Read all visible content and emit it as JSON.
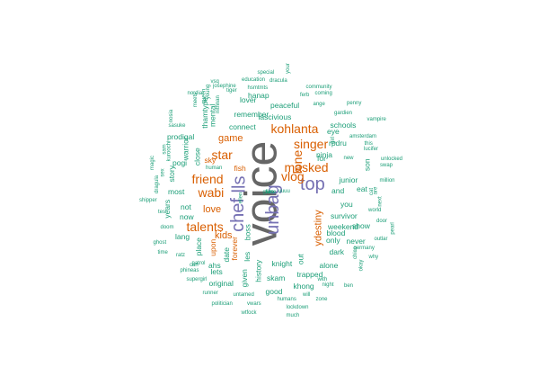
{
  "colors": {
    "gray": "#666666",
    "purple": "#7570b3",
    "orange": "#d95f02",
    "teal": "#1b9e77",
    "background": "#ffffff"
  },
  "words": [
    {
      "text": "voice",
      "color": "gray",
      "tier": 1
    },
    {
      "text": "lls",
      "color": "purple",
      "tier": 2
    },
    {
      "text": "unbag",
      "color": "purple",
      "tier": 2
    },
    {
      "text": "top",
      "color": "purple",
      "tier": 2
    },
    {
      "text": "chef",
      "color": "purple",
      "tier": 2
    },
    {
      "text": "kohlanta",
      "color": "orange",
      "tier": 3
    },
    {
      "text": "singer",
      "color": "orange",
      "tier": 3
    },
    {
      "text": "masked",
      "color": "orange",
      "tier": 3
    },
    {
      "text": "friend",
      "color": "orange",
      "tier": 3
    },
    {
      "text": "star",
      "color": "orange",
      "tier": 3
    },
    {
      "text": "wabi",
      "color": "orange",
      "tier": 3
    },
    {
      "text": "lone",
      "color": "orange",
      "tier": 3
    },
    {
      "text": "vlog",
      "color": "orange",
      "tier": 3
    },
    {
      "text": "talents",
      "color": "orange",
      "tier": 3
    },
    {
      "text": "game",
      "color": "orange",
      "tier": 4
    },
    {
      "text": "love",
      "color": "orange",
      "tier": 4
    },
    {
      "text": "kids",
      "color": "orange",
      "tier": 4
    },
    {
      "text": "ydestiny",
      "color": "orange",
      "tier": 4
    },
    {
      "text": "fish",
      "color": "orange",
      "tier": 5
    },
    {
      "text": "sky",
      "color": "orange",
      "tier": 5
    },
    {
      "text": "upon",
      "color": "orange",
      "tier": 5
    },
    {
      "text": "forever",
      "color": "orange",
      "tier": 5
    },
    {
      "text": "connect",
      "color": "teal",
      "tier": 5
    },
    {
      "text": "remember",
      "color": "teal",
      "tier": 5
    },
    {
      "text": "lascivious",
      "color": "teal",
      "tier": 5
    },
    {
      "text": "peaceful",
      "color": "teal",
      "tier": 5
    },
    {
      "text": "eye",
      "color": "teal",
      "tier": 5
    },
    {
      "text": "schools",
      "color": "teal",
      "tier": 5
    },
    {
      "text": "ninja",
      "color": "teal",
      "tier": 5
    },
    {
      "text": "junior",
      "color": "teal",
      "tier": 5
    },
    {
      "text": "and",
      "color": "teal",
      "tier": 5
    },
    {
      "text": "you",
      "color": "teal",
      "tier": 5
    },
    {
      "text": "survivor",
      "color": "teal",
      "tier": 5
    },
    {
      "text": "weekend",
      "color": "teal",
      "tier": 5
    },
    {
      "text": "only",
      "color": "teal",
      "tier": 5
    },
    {
      "text": "never",
      "color": "teal",
      "tier": 5
    },
    {
      "text": "dark",
      "color": "teal",
      "tier": 5
    },
    {
      "text": "alone",
      "color": "teal",
      "tier": 5
    },
    {
      "text": "trapped",
      "color": "teal",
      "tier": 5
    },
    {
      "text": "knight",
      "color": "teal",
      "tier": 5
    },
    {
      "text": "skam",
      "color": "teal",
      "tier": 5
    },
    {
      "text": "khong",
      "color": "teal",
      "tier": 5
    },
    {
      "text": "good",
      "color": "teal",
      "tier": 5
    },
    {
      "text": "history",
      "color": "teal",
      "tier": 5
    },
    {
      "text": "original",
      "color": "teal",
      "tier": 5
    },
    {
      "text": "lets",
      "color": "teal",
      "tier": 5
    },
    {
      "text": "ahs",
      "color": "teal",
      "tier": 5
    },
    {
      "text": "date",
      "color": "teal",
      "tier": 5
    },
    {
      "text": "given",
      "color": "teal",
      "tier": 5
    },
    {
      "text": "les",
      "color": "teal",
      "tier": 5
    },
    {
      "text": "boss",
      "color": "teal",
      "tier": 5
    },
    {
      "text": "place",
      "color": "teal",
      "tier": 5
    },
    {
      "text": "lang",
      "color": "teal",
      "tier": 5
    },
    {
      "text": "now",
      "color": "teal",
      "tier": 5
    },
    {
      "text": "not",
      "color": "teal",
      "tier": 5
    },
    {
      "text": "most",
      "color": "teal",
      "tier": 5
    },
    {
      "text": "story",
      "color": "teal",
      "tier": 5
    },
    {
      "text": "pogi",
      "color": "teal",
      "tier": 5
    },
    {
      "text": "prodigal",
      "color": "teal",
      "tier": 5
    },
    {
      "text": "warrior",
      "color": "teal",
      "tier": 5
    },
    {
      "text": "close",
      "color": "teal",
      "tier": 5
    },
    {
      "text": "mental",
      "color": "teal",
      "tier": 5
    },
    {
      "text": "hanap",
      "color": "teal",
      "tier": 5
    },
    {
      "text": "lover",
      "color": "teal",
      "tier": 5
    },
    {
      "text": "rpdru",
      "color": "teal",
      "tier": 5
    },
    {
      "text": "son",
      "color": "teal",
      "tier": 5
    },
    {
      "text": "eat",
      "color": "teal",
      "tier": 5
    },
    {
      "text": "for",
      "color": "teal",
      "tier": 5
    },
    {
      "text": "years",
      "color": "teal",
      "tier": 5
    },
    {
      "text": "show",
      "color": "teal",
      "tier": 5
    },
    {
      "text": "out",
      "color": "teal",
      "tier": 5
    },
    {
      "text": "blood",
      "color": "teal",
      "tier": 5
    },
    {
      "text": "thamtype",
      "color": "teal",
      "tier": 5
    },
    {
      "text": "human",
      "color": "teal",
      "tier": 6
    },
    {
      "text": "amsterdam",
      "color": "teal",
      "tier": 6
    },
    {
      "text": "girl",
      "color": "teal",
      "tier": 6
    },
    {
      "text": "nithnan",
      "color": "teal",
      "tier": 6
    },
    {
      "text": "hsmtmts",
      "color": "teal",
      "tier": 6
    },
    {
      "text": "josephine",
      "color": "teal",
      "tier": 6
    },
    {
      "text": "vsq",
      "color": "teal",
      "tier": 6
    },
    {
      "text": "education",
      "color": "teal",
      "tier": 6
    },
    {
      "text": "dracula",
      "color": "teal",
      "tier": 6
    },
    {
      "text": "special",
      "color": "teal",
      "tier": 6
    },
    {
      "text": "your",
      "color": "teal",
      "tier": 6
    },
    {
      "text": "community",
      "color": "teal",
      "tier": 6
    },
    {
      "text": "coming",
      "color": "teal",
      "tier": 6
    },
    {
      "text": "ferb",
      "color": "teal",
      "tier": 6
    },
    {
      "text": "ange",
      "color": "teal",
      "tier": 6
    },
    {
      "text": "penny",
      "color": "teal",
      "tier": 6
    },
    {
      "text": "gardien",
      "color": "teal",
      "tier": 6
    },
    {
      "text": "vampire",
      "color": "teal",
      "tier": 6
    },
    {
      "text": "this",
      "color": "teal",
      "tier": 6
    },
    {
      "text": "lucifer",
      "color": "teal",
      "tier": 6
    },
    {
      "text": "unlocked",
      "color": "teal",
      "tier": 6
    },
    {
      "text": "swap",
      "color": "teal",
      "tier": 6
    },
    {
      "text": "million",
      "color": "teal",
      "tier": 6
    },
    {
      "text": "world",
      "color": "teal",
      "tier": 6
    },
    {
      "text": "door",
      "color": "teal",
      "tier": 6
    },
    {
      "text": "pearl",
      "color": "teal",
      "tier": 6
    },
    {
      "text": "outlar",
      "color": "teal",
      "tier": 6
    },
    {
      "text": "why",
      "color": "teal",
      "tier": 6
    },
    {
      "text": "okay",
      "color": "teal",
      "tier": 6
    },
    {
      "text": "chico",
      "color": "teal",
      "tier": 6
    },
    {
      "text": "germany",
      "color": "teal",
      "tier": 6
    },
    {
      "text": "ben",
      "color": "teal",
      "tier": 6
    },
    {
      "text": "night",
      "color": "teal",
      "tier": 6
    },
    {
      "text": "with",
      "color": "teal",
      "tier": 6
    },
    {
      "text": "will",
      "color": "teal",
      "tier": 6
    },
    {
      "text": "zone",
      "color": "teal",
      "tier": 6
    },
    {
      "text": "much",
      "color": "teal",
      "tier": 6
    },
    {
      "text": "lockdown",
      "color": "teal",
      "tier": 6
    },
    {
      "text": "humans",
      "color": "teal",
      "tier": 6
    },
    {
      "text": "wtfock",
      "color": "teal",
      "tier": 6
    },
    {
      "text": "vwars",
      "color": "teal",
      "tier": 6
    },
    {
      "text": "untamed",
      "color": "teal",
      "tier": 6
    },
    {
      "text": "politician",
      "color": "teal",
      "tier": 6
    },
    {
      "text": "runner",
      "color": "teal",
      "tier": 6
    },
    {
      "text": "supergirl",
      "color": "teal",
      "tier": 6
    },
    {
      "text": "phineas",
      "color": "teal",
      "tier": 6
    },
    {
      "text": "can",
      "color": "teal",
      "tier": 6
    },
    {
      "text": "patrol",
      "color": "teal",
      "tier": 6
    },
    {
      "text": "ratz",
      "color": "teal",
      "tier": 6
    },
    {
      "text": "time",
      "color": "teal",
      "tier": 6
    },
    {
      "text": "ghost",
      "color": "teal",
      "tier": 6
    },
    {
      "text": "doom",
      "color": "teal",
      "tier": 6
    },
    {
      "text": "test",
      "color": "teal",
      "tier": 6
    },
    {
      "text": "shipper",
      "color": "teal",
      "tier": 6
    },
    {
      "text": "dragula",
      "color": "teal",
      "tier": 6
    },
    {
      "text": "sex",
      "color": "teal",
      "tier": 6
    },
    {
      "text": "magic",
      "color": "teal",
      "tier": 6
    },
    {
      "text": "sam",
      "color": "teal",
      "tier": 6
    },
    {
      "text": "kuroochi",
      "color": "teal",
      "tier": 6
    },
    {
      "text": "sasuke",
      "color": "teal",
      "tier": 6
    },
    {
      "text": "nosia",
      "color": "teal",
      "tier": 6
    },
    {
      "text": "nordia",
      "color": "teal",
      "tier": 6
    },
    {
      "text": "meets",
      "color": "teal",
      "tier": 6
    },
    {
      "text": "queen",
      "color": "teal",
      "tier": 6
    },
    {
      "text": "young",
      "color": "teal",
      "tier": 6
    },
    {
      "text": "tiger",
      "color": "teal",
      "tier": 6
    },
    {
      "text": "ellen",
      "color": "teal",
      "tier": 6
    },
    {
      "text": "uuuu",
      "color": "teal",
      "tier": 6
    },
    {
      "text": "new",
      "color": "teal",
      "tier": 6
    },
    {
      "text": "next",
      "color": "teal",
      "tier": 6
    },
    {
      "text": "cat",
      "color": "teal",
      "tier": 6
    },
    {
      "text": "are",
      "color": "teal",
      "tier": 6
    },
    {
      "text": "two",
      "color": "teal",
      "tier": 6
    },
    {
      "text": "grace",
      "color": "teal",
      "tier": 6
    },
    {
      "text": "film",
      "color": "teal",
      "tier": 6
    }
  ]
}
